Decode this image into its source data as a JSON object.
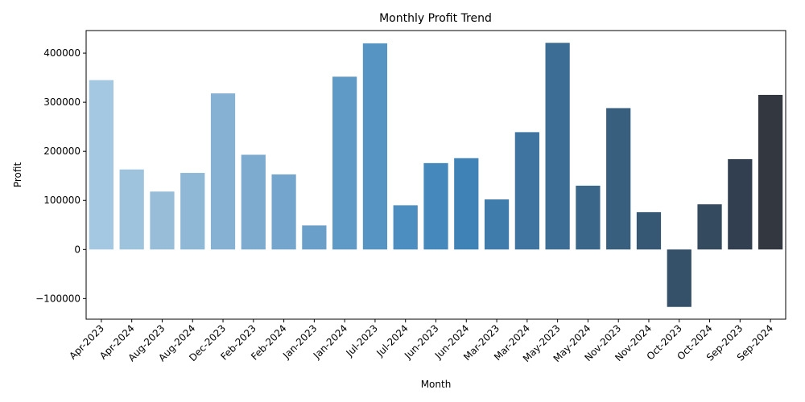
{
  "chart_data": {
    "type": "bar",
    "title": "Monthly Profit Trend",
    "xlabel": "Month",
    "ylabel": "Profit",
    "ylim": [
      -142000,
      446000
    ],
    "yticks": [
      -100000,
      0,
      100000,
      200000,
      300000,
      400000
    ],
    "ytick_labels": [
      "−100000",
      "0",
      "100000",
      "200000",
      "300000",
      "400000"
    ],
    "grid": false,
    "legend": "none",
    "categories": [
      "Apr-2023",
      "Apr-2024",
      "Aug-2023",
      "Aug-2024",
      "Dec-2023",
      "Feb-2023",
      "Feb-2024",
      "Jan-2023",
      "Jan-2024",
      "Jul-2023",
      "Jul-2024",
      "Jun-2023",
      "Jun-2024",
      "Mar-2023",
      "Mar-2024",
      "May-2023",
      "May-2024",
      "Nov-2023",
      "Nov-2024",
      "Oct-2023",
      "Oct-2024",
      "Sep-2023",
      "Sep-2024"
    ],
    "values": [
      345000,
      163000,
      118000,
      156000,
      318000,
      193000,
      153000,
      49000,
      352000,
      420000,
      90000,
      176000,
      186000,
      102000,
      239000,
      421000,
      130000,
      288000,
      76000,
      -117000,
      92000,
      184000,
      315000
    ],
    "colors": [
      "#a4c8e1",
      "#9ec3dd",
      "#98bdd9",
      "#8fb7d6",
      "#86b1d3",
      "#7dabcf",
      "#74a5cc",
      "#6a9fca",
      "#5f9ac6",
      "#5594c3",
      "#4b8ebf",
      "#4488bc",
      "#3f82b6",
      "#3f7bab",
      "#3e749f",
      "#3c6d94",
      "#3a6689",
      "#385f7e",
      "#365874",
      "#35516a",
      "#344a5f",
      "#323f51",
      "#333740"
    ]
  }
}
